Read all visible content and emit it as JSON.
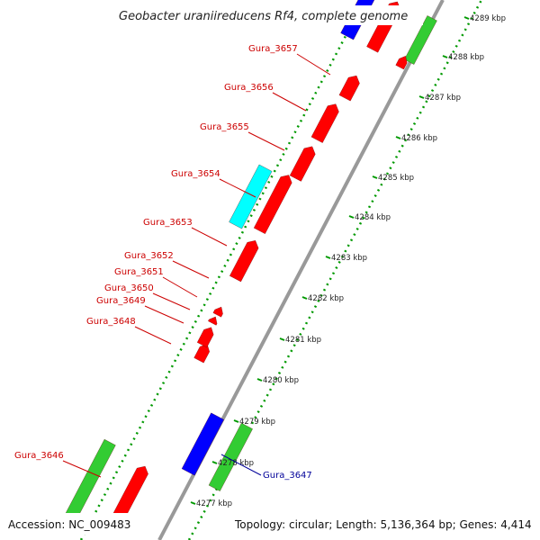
{
  "title": "Geobacter uraniireducens Rf4, complete genome",
  "footer": {
    "accession": "Accession: NC_009483",
    "summary": "Topology: circular; Length: 5,136,364 bp; Genes: 4,414"
  },
  "colors": {
    "backbone": "#999999",
    "cds": "#ff0000",
    "trna": "#0000ff",
    "rrna": "#33cc33",
    "misc": "#00ffff",
    "label_cds": "#cc0000",
    "label_other": "#000099",
    "ruler_dots": "#009900"
  },
  "ticks": [
    "4277 kbp",
    "4278 kbp",
    "4279 kbp",
    "4280 kbp",
    "4281 kbp",
    "4282 kbp",
    "4283 kbp",
    "4284 kbp",
    "4285 kbp",
    "4286 kbp",
    "4287 kbp",
    "4288 kbp",
    "4289 kbp"
  ],
  "gene_labels": [
    {
      "id": "Gura_3657",
      "type": "cds"
    },
    {
      "id": "Gura_3656",
      "type": "cds"
    },
    {
      "id": "Gura_3655",
      "type": "cds"
    },
    {
      "id": "Gura_3654",
      "type": "cds"
    },
    {
      "id": "Gura_3653",
      "type": "cds"
    },
    {
      "id": "Gura_3652",
      "type": "cds"
    },
    {
      "id": "Gura_3651",
      "type": "cds"
    },
    {
      "id": "Gura_3650",
      "type": "cds"
    },
    {
      "id": "Gura_3649",
      "type": "cds"
    },
    {
      "id": "Gura_3648",
      "type": "cds"
    },
    {
      "id": "Gura_3646",
      "type": "cds"
    },
    {
      "id": "Gura_3647",
      "type": "other"
    }
  ]
}
